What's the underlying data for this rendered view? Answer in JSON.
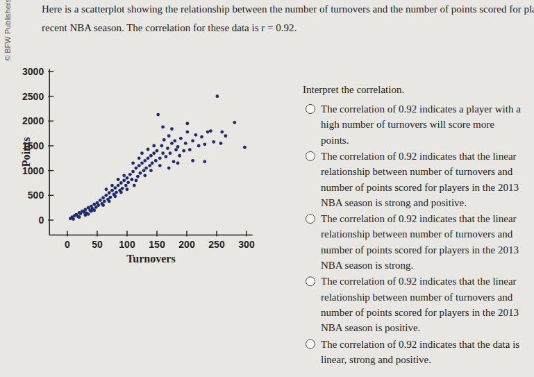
{
  "credit": "© BFW Publishers",
  "question": {
    "intro": [
      "Here is a scatterplot showing the relationship between the number of turnovers and the number of points scored for players in a",
      "recent NBA season. The correlation for these data is r = 0.92."
    ],
    "prompt": "Interpret the correlation.",
    "options": [
      [
        "The correlation of 0.92 indicates a player with a",
        "high number of turnovers will score more",
        "points."
      ],
      [
        "The correlation of 0.92 indicates that the linear",
        "relationship between number of turnovers and",
        "number of points scored for players in the 2013",
        "NBA season is strong and positive."
      ],
      [
        "The correlation of 0.92 indicates that the linear",
        "relationship between number of turnovers and",
        "number of points scored for players in the 2013",
        "NBA season is strong."
      ],
      [
        "The correlation of 0.92 indicates that the linear",
        "relationship between number of turnovers and",
        "number of points scored for players in the 2013",
        "NBA season is positive."
      ],
      [
        "The correlation of 0.92 indicates that the data is",
        "linear, strong and positive."
      ]
    ]
  },
  "chart_data": {
    "type": "scatter",
    "x_label": "Turnovers",
    "y_label": "Points",
    "color": "#1f2a6b",
    "marker": "circle",
    "xlim": [
      -30,
      310
    ],
    "ylim": [
      -300,
      3050
    ],
    "xticks": [
      0,
      50,
      100,
      150,
      200,
      250,
      300
    ],
    "yticks": [
      0,
      500,
      1000,
      1500,
      2000,
      2500,
      3000
    ],
    "x": [
      5,
      8,
      10,
      12,
      15,
      18,
      20,
      22,
      25,
      28,
      30,
      32,
      35,
      38,
      40,
      42,
      45,
      48,
      50,
      52,
      20,
      30,
      40,
      45,
      35,
      55,
      58,
      60,
      62,
      65,
      68,
      70,
      72,
      75,
      78,
      80,
      82,
      85,
      88,
      90,
      92,
      95,
      98,
      100,
      60,
      70,
      80,
      90,
      100,
      85,
      95,
      75,
      65,
      102,
      105,
      108,
      110,
      112,
      115,
      118,
      120,
      122,
      125,
      128,
      130,
      132,
      135,
      138,
      140,
      142,
      145,
      148,
      150,
      110,
      120,
      130,
      140,
      125,
      135,
      145,
      115,
      155,
      158,
      160,
      162,
      165,
      168,
      170,
      172,
      175,
      178,
      180,
      182,
      185,
      188,
      190,
      195,
      198,
      152,
      160,
      175,
      155,
      170,
      185,
      201,
      201,
      205,
      210,
      215,
      220,
      225,
      230,
      235,
      240,
      245,
      251,
      257,
      259,
      265,
      280,
      297,
      230,
      210
    ],
    "values": [
      30,
      60,
      20,
      90,
      110,
      70,
      150,
      130,
      180,
      160,
      210,
      140,
      250,
      200,
      280,
      230,
      320,
      260,
      350,
      300,
      60,
      100,
      180,
      200,
      120,
      400,
      330,
      450,
      380,
      500,
      420,
      550,
      460,
      600,
      520,
      650,
      560,
      700,
      600,
      750,
      640,
      800,
      700,
      850,
      300,
      380,
      480,
      560,
      620,
      820,
      900,
      700,
      620,
      760,
      920,
      820,
      980,
      700,
      1050,
      880,
      1100,
      950,
      1150,
      1000,
      1200,
      1050,
      1250,
      1100,
      1300,
      1150,
      1350,
      1200,
      1400,
      1150,
      1250,
      900,
      1000,
      1350,
      1430,
      1500,
      800,
      1250,
      1500,
      1350,
      1620,
      1280,
      1450,
      1700,
      1350,
      1550,
      1180,
      1600,
      1420,
      1480,
      1300,
      1650,
      1400,
      1550,
      2130,
      1880,
      1840,
      1100,
      1050,
      1150,
      1950,
      1780,
      1420,
      1600,
      1720,
      1500,
      1680,
      1530,
      1780,
      1800,
      1580,
      2500,
      1550,
      1780,
      1700,
      1970,
      1470,
      1180,
      1200
    ]
  }
}
